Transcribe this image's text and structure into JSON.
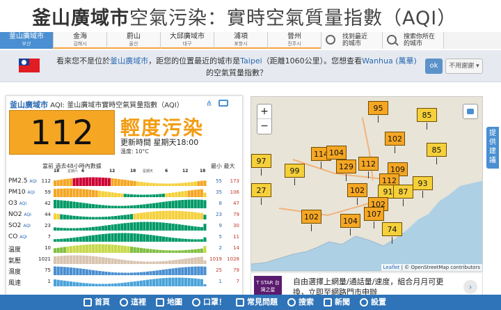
{
  "page": {
    "title_bold": "釜山廣域市",
    "title_rest": "空氣污染：實時空氣質量指數（AQI）"
  },
  "city_tabs": [
    {
      "name": "釜山廣域市",
      "ko": "부산",
      "active": true
    },
    {
      "name": "金海",
      "ko": "김해시",
      "active": false
    },
    {
      "name": "蔚山",
      "ko": "울산",
      "active": false
    },
    {
      "name": "大邱廣域市",
      "ko": "대구",
      "active": false
    },
    {
      "name": "浦項",
      "ko": "포항시",
      "active": false
    },
    {
      "name": "晉州",
      "ko": "진주시",
      "active": false
    }
  ],
  "tools": {
    "nearest_line1": "找到最近",
    "nearest_line2": "的城市",
    "search_line1": "搜索你所在",
    "search_line2": "的城市"
  },
  "notice": {
    "p1": "看來您不是位於",
    "city": "釜山廣域市",
    "p2": "，距您的位置最近的城市是",
    "nearest": "Taipei",
    "p3": "（距離1060公里）。您想查看",
    "alt": "Wanhua (萬華)",
    "p4": "的空氣質量指數？",
    "ok": "ok",
    "no": "不用謝謝"
  },
  "card": {
    "city": "釜山廣域市",
    "subtitle": "AQI: 釜山廣域市實時空氣質量指數（AQI）",
    "aqi": "112",
    "level": "輕度污染",
    "updated": "更新時間 星期天18:00",
    "temperature": "溫度: 10°C",
    "history_title": "當前 過去48小時內數據",
    "min_max": "最小 最大",
    "ticks": [
      "18",
      "星期六",
      "6",
      "12",
      "18",
      "星期天",
      "6",
      "12",
      "18"
    ]
  },
  "rows": [
    {
      "name": "PM2.5",
      "unit": "AQI",
      "cur": "112",
      "min": "55",
      "max": "173",
      "kind": "pm25"
    },
    {
      "name": "PM10",
      "unit": "AQI",
      "cur": "59",
      "min": "35",
      "max": "106",
      "kind": "pm10"
    },
    {
      "name": "O3",
      "unit": "AQI",
      "cur": "42",
      "min": "8",
      "max": "47",
      "kind": "o3"
    },
    {
      "name": "NO2",
      "unit": "AQI",
      "cur": "44",
      "min": "23",
      "max": "79",
      "kind": "no2"
    },
    {
      "name": "SO2",
      "unit": "AQI",
      "cur": "23",
      "min": "9",
      "max": "30",
      "kind": "so2"
    },
    {
      "name": "CO",
      "unit": "AQI",
      "cur": "7",
      "min": "5",
      "max": "11",
      "kind": "co"
    },
    {
      "name": "溫度",
      "unit": "",
      "cur": "10",
      "min": "2",
      "max": "14",
      "kind": "temp"
    },
    {
      "name": "氣壓",
      "unit": "",
      "cur": "1021",
      "min": "1019",
      "max": "1028",
      "kind": "press"
    },
    {
      "name": "濕度",
      "unit": "",
      "cur": "75",
      "min": "25",
      "max": "79",
      "kind": "hum"
    },
    {
      "name": "風速",
      "unit": "",
      "cur": "1",
      "min": "1",
      "max": "7",
      "kind": "wind"
    }
  ],
  "map": {
    "markers": [
      {
        "v": "95",
        "c": "orange"
      },
      {
        "v": "85",
        "c": "yellow"
      },
      {
        "v": "102",
        "c": "orange"
      },
      {
        "v": "97",
        "c": "yellow"
      },
      {
        "v": "114",
        "c": "orange"
      },
      {
        "v": "104",
        "c": "orange"
      },
      {
        "v": "85",
        "c": "yellow"
      },
      {
        "v": "99",
        "c": "yellow"
      },
      {
        "v": "129",
        "c": "orange"
      },
      {
        "v": "112",
        "c": "orange"
      },
      {
        "v": "109",
        "c": "orange"
      },
      {
        "v": "112",
        "c": "orange"
      },
      {
        "v": "93",
        "c": "yellow"
      },
      {
        "v": "102",
        "c": "orange"
      },
      {
        "v": "91",
        "c": "yellow"
      },
      {
        "v": "87",
        "c": "yellow"
      },
      {
        "v": "102",
        "c": "orange"
      },
      {
        "v": "107",
        "c": "orange"
      },
      {
        "v": "102",
        "c": "orange"
      },
      {
        "v": "104",
        "c": "orange"
      },
      {
        "v": "74",
        "c": "yellow"
      },
      {
        "v": "27",
        "c": "yellow"
      }
    ],
    "attrib_leaflet": "Leaflet",
    "attrib_osm": "© OpenStreetMap contributors",
    "zoom_in": "+",
    "zoom_out": "−"
  },
  "ad": {
    "logo": "T STAR 台灣之星",
    "text": "自由選擇上網量/通話量/速度，組合月月可更換，立即至網路門市申辦"
  },
  "side_tab": "提供建議",
  "bottom_nav": [
    "首頁",
    "這裡",
    "地圖",
    "口罩！",
    "常見問題",
    "搜索",
    "新聞",
    "設置"
  ],
  "colors": {
    "good": "#009966",
    "moderate": "#f5d03a",
    "unhealthy_sensitive": "#f5a623",
    "unhealthy": "#cc0033",
    "meteo": "#7fbf3f"
  }
}
